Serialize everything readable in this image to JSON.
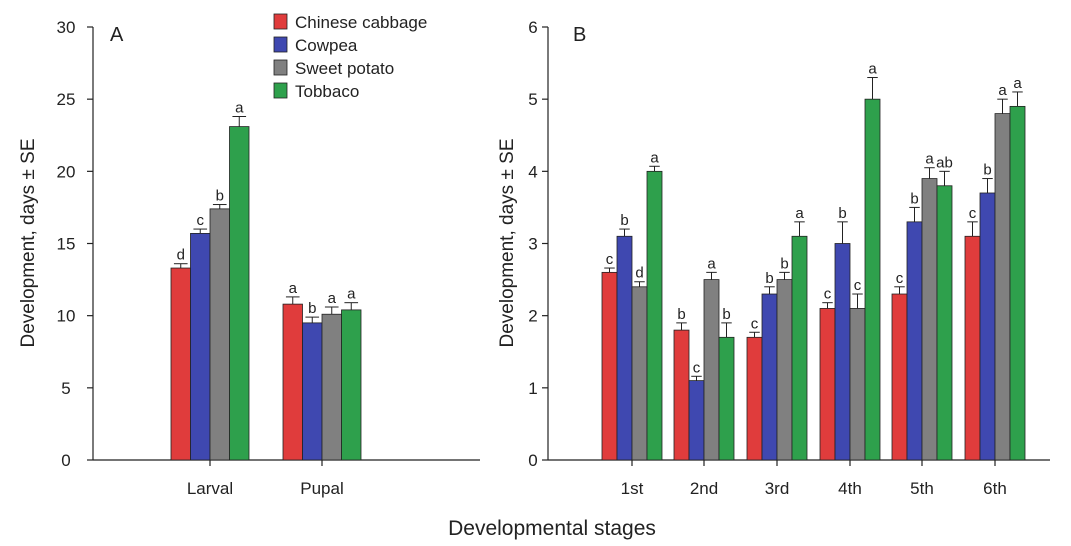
{
  "chart_data": [
    {
      "type": "bar",
      "panel_label": "A",
      "ylabel": "Development, days ± SE",
      "ylim": [
        0,
        30
      ],
      "yticks": [
        0,
        5,
        10,
        15,
        20,
        25,
        30
      ],
      "categories": [
        "Larval",
        "Pupal"
      ],
      "series": [
        {
          "name": "Chinese cabbage",
          "color": "#e03c3c",
          "values": [
            13.3,
            10.8
          ],
          "errors": [
            0.3,
            0.5
          ],
          "letters": [
            "d",
            "a"
          ]
        },
        {
          "name": "Cowpea",
          "color": "#3f48b0",
          "values": [
            15.7,
            9.5
          ],
          "errors": [
            0.3,
            0.4
          ],
          "letters": [
            "c",
            "b"
          ]
        },
        {
          "name": "Sweet potato",
          "color": "#808080",
          "values": [
            17.4,
            10.1
          ],
          "errors": [
            0.3,
            0.5
          ],
          "letters": [
            "b",
            "a"
          ]
        },
        {
          "name": "Tobbaco",
          "color": "#2ea04c",
          "values": [
            23.1,
            10.4
          ],
          "errors": [
            0.7,
            0.5
          ],
          "letters": [
            "a",
            "a"
          ]
        }
      ],
      "legend": "top-right"
    },
    {
      "type": "bar",
      "panel_label": "B",
      "ylabel": "Development, days ± SE",
      "ylim": [
        0,
        6
      ],
      "yticks": [
        0,
        1,
        2,
        3,
        4,
        5,
        6
      ],
      "categories": [
        "1st",
        "2nd",
        "3rd",
        "4th",
        "5th",
        "6th"
      ],
      "series": [
        {
          "name": "Chinese cabbage",
          "color": "#e03c3c",
          "values": [
            2.6,
            1.8,
            1.7,
            2.1,
            2.3,
            3.1
          ],
          "errors": [
            0.06,
            0.1,
            0.07,
            0.08,
            0.1,
            0.2
          ],
          "letters": [
            "c",
            "b",
            "c",
            "c",
            "c",
            "c"
          ]
        },
        {
          "name": "Cowpea",
          "color": "#3f48b0",
          "values": [
            3.1,
            1.1,
            2.3,
            3.0,
            3.3,
            3.7
          ],
          "errors": [
            0.1,
            0.06,
            0.1,
            0.3,
            0.2,
            0.2
          ],
          "letters": [
            "b",
            "c",
            "b",
            "b",
            "b",
            "b"
          ]
        },
        {
          "name": "Sweet potato",
          "color": "#808080",
          "values": [
            2.4,
            2.5,
            2.5,
            2.1,
            3.9,
            4.8
          ],
          "errors": [
            0.07,
            0.1,
            0.1,
            0.2,
            0.15,
            0.2
          ],
          "letters": [
            "d",
            "a",
            "b",
            "c",
            "a",
            "a"
          ]
        },
        {
          "name": "Tobbaco",
          "color": "#2ea04c",
          "values": [
            4.0,
            1.7,
            3.1,
            5.0,
            3.8,
            4.9
          ],
          "errors": [
            0.07,
            0.2,
            0.2,
            0.3,
            0.2,
            0.2
          ],
          "letters": [
            "a",
            "b",
            "a",
            "a",
            "ab",
            "a"
          ]
        }
      ]
    }
  ],
  "shared_xlabel": "Developmental stages"
}
